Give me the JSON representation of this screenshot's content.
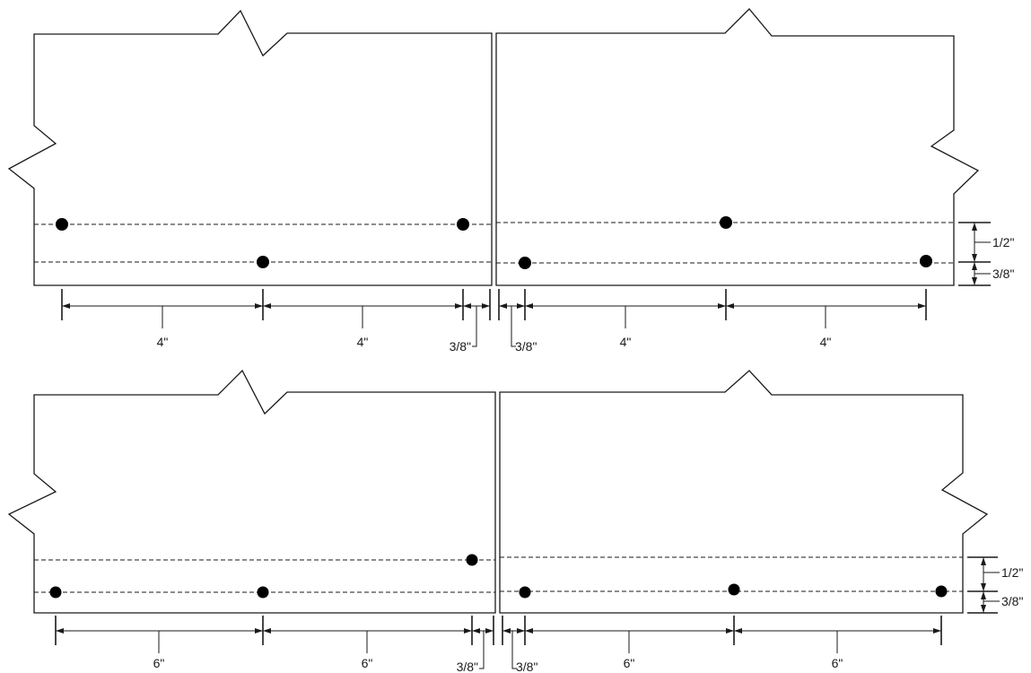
{
  "labels": {
    "top_left_span_1": "4\"",
    "top_left_span_2": "4\"",
    "top_left_gap": "3/8\"",
    "top_right_gap": "3/8\"",
    "top_right_span_1": "4\"",
    "top_right_span_2": "4\"",
    "top_vert_upper": "1/2\"",
    "top_vert_lower": "3/8\"",
    "bottom_left_span_1": "6\"",
    "bottom_left_span_2": "6\"",
    "bottom_left_gap": "3/8\"",
    "bottom_right_gap": "3/8\"",
    "bottom_right_span_1": "6\"",
    "bottom_right_span_2": "6\"",
    "bottom_vert_upper": "1/2\"",
    "bottom_vert_lower": "3/8\""
  }
}
